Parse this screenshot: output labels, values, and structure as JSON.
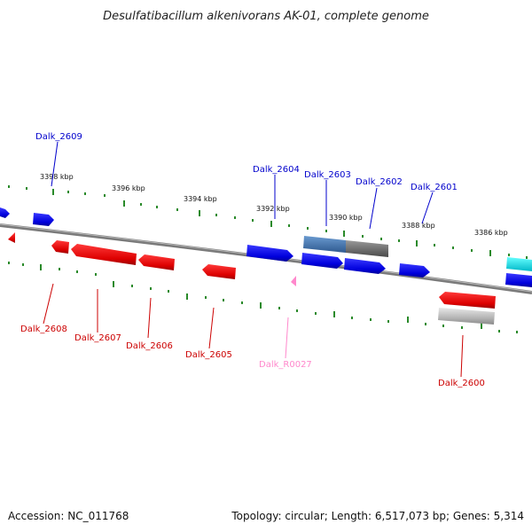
{
  "title": "Desulfatibacillum alkenivorans AK-01, complete genome",
  "footer": {
    "accession": "Accession: NC_011768",
    "summary": "Topology: circular; Length: 6,517,073 bp; Genes: 5,314"
  },
  "colors": {
    "forward": "#0000ee",
    "reverse": "#ee0000",
    "rna": "#ff88cc",
    "backbone": "#808080",
    "tick": "#2a8a2a",
    "highlight_cyan": "#00e5e5",
    "highlight_gray": "#7a7a7a",
    "selected_blue": "#4a78b0"
  },
  "ticks": [
    "3398 kbp",
    "3396 kbp",
    "3394 kbp",
    "3392 kbp",
    "3390 kbp",
    "3388 kbp",
    "3386 kbp"
  ],
  "genes_top": [
    {
      "label": "Dalk_2609"
    },
    {
      "label": "Dalk_2604"
    },
    {
      "label": "Dalk_2603"
    },
    {
      "label": "Dalk_2602"
    },
    {
      "label": "Dalk_2601"
    }
  ],
  "genes_bottom": [
    {
      "label": "Dalk_2608"
    },
    {
      "label": "Dalk_2607"
    },
    {
      "label": "Dalk_2606"
    },
    {
      "label": "Dalk_2605"
    },
    {
      "label": "Dalk_R0027"
    },
    {
      "label": "Dalk_2600"
    }
  ]
}
